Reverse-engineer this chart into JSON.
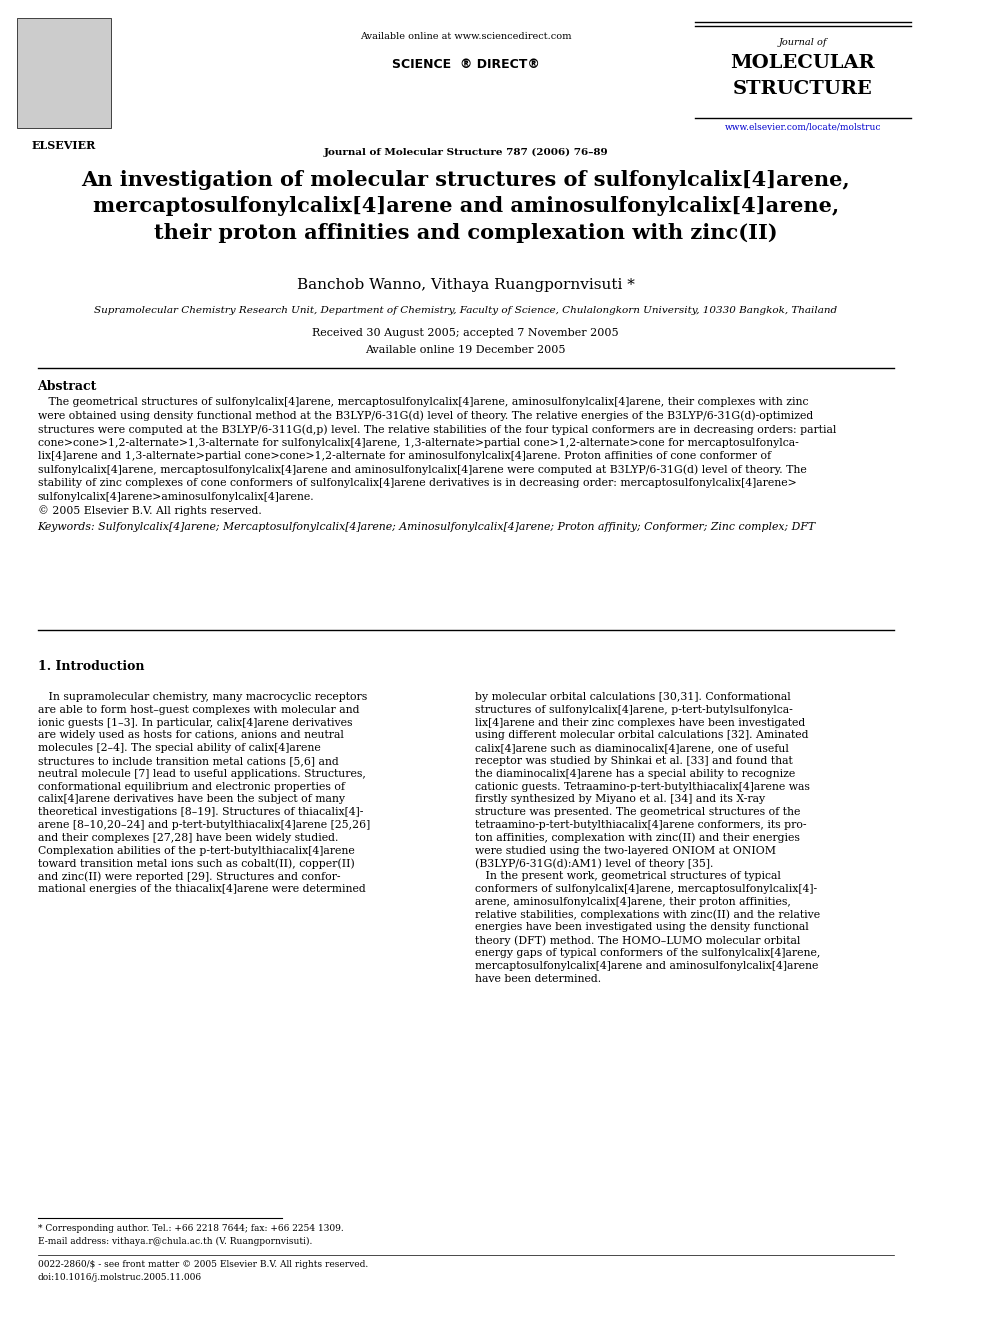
{
  "page_bg": "#ffffff",
  "header": {
    "available_online": "Available online at www.sciencedirect.com",
    "journal_line": "Journal of Molecular Structure 787 (2006) 76–89",
    "journal_name_line1": "Journal of",
    "journal_name_line2": "MOLECULAR",
    "journal_name_line3": "STRUCTURE",
    "journal_url": "www.elsevier.com/locate/molstruc"
  },
  "title": "An investigation of molecular structures of sulfonylcalix[4]arene,\nmercaptosulfonylcalix[4]arene and aminosulfonylcalix[4]arene,\ntheir proton affinities and complexation with zinc(II)",
  "authors": "Banchob Wanno, Vithaya Ruangpornvisuti *",
  "affiliation": "Supramolecular Chemistry Research Unit, Department of Chemistry, Faculty of Science, Chulalongkorn University, 10330 Bangkok, Thailand",
  "received": "Received 30 August 2005; accepted 7 November 2005",
  "available": "Available online 19 December 2005",
  "abstract_title": "Abstract",
  "abstract_text": "The geometrical structures of sulfonylcalix[4]arene, mercaptosulfonylcalix[4]arene, aminosulfonylcalix[4]arene, their complexes with zinc were obtained using density functional method at the B3LYP/6-31G(d) level of theory. The relative energies of the B3LYP/6-31G(d)-optimized structures were computed at the B3LYP/6-311G(d,p) level. The relative stabilities of the four typical conformers are in decreasing orders: partial cone>cone>1,2-alternate>1,3-alternate for sulfonylcalix[4]arene, 1,3-alternate>partial cone>1,2-alternate>cone for mercaptosulfonylcalix[4]arene and 1,3-alternate>partial cone>cone>1,2-alternate for aminosulfonylcalix[4]arene. Proton affinities of cone conformer of sulfonylcalix[4]arene, mercaptosulfonylcalix[4]arene and aminosulfonylcalix[4]arene were computed at B3LYP/6-31G(d) level of theory. The stability of zinc complexes of cone conformers of sulfonylcalix[4]arene derivatives is in decreasing order: mercaptosulfonylcalix[4]arene>sulfonylcalix[4]arene>aminosulfonylcalix[4]arene.\n© 2005 Elsevier B.V. All rights reserved.",
  "keywords": "Keywords: Sulfonylcalix[4]arene; Mercaptosulfonylcalix[4]arene; Aminosulfonylcalix[4]arene; Proton affinity; Conformer; Zinc complex; DFT",
  "intro_title": "1. Introduction",
  "intro_left": "In supramolecular chemistry, many macrocyclic receptors are able to form host–guest complexes with molecular and ionic guests [1–3]. In particular, calix[4]arene derivatives are widely used as hosts for cations, anions and neutral molecules [2–4]. The special ability of calix[4]arene structures to include transition metal cations [5,6] and neutral molecule [7] lead to useful applications. Structures, conformational equilibrium and electronic properties of calix[4]arene derivatives have been the subject of many theoretical investigations [8–19]. Structures of thiacalix[4]arene [8–10,20–24] and p-tert-butylthiacalix[4]arene [25,26] and their complexes [27,28] have been widely studied. Complexation abilities of the p-tert-butylthiacalix[4]arene toward transition metal ions such as cobalt(II), copper(II) and zinc(II) were reported [29]. Structures and conformational energies of the thiacalix[4]arene were determined",
  "intro_right": "by molecular orbital calculations [30,31]. Conformational structures of sulfonylcalix[4]arene, p-tert-butylsulfonylcalix[4]arene and their zinc complexes have been investigated using different molecular orbital calculations [32]. Aminated calix[4]arene such as diaminocalix[4]arene, one of useful receptor was studied by Shinkai et al. [33] and found that the diaminocalix[4]arene has a special ability to recognize cationic guests. Tetraamino-p-tert-butylthiacalix[4]arene was firstly synthesized by Miyano et al. [34] and its X-ray structure was presented. The geometrical structures of the tetraamino-p-tert-butylthiacalix[4]arene conformers, its proton affinities, complexation with zinc(II) and their energies were studied using the two-layered ONIOM at ONIOM (B3LYP/6-31G(d):AM1) level of theory [35].\n    In the present work, geometrical structures of typical conformers of sulfonylcalix[4]arene, mercaptosulfonylcalix[4]-arene, aminosulfonylcalix[4]arene, their proton affinities, relative stabilities, complexations with zinc(II) and the relative energies have been investigated using the density functional theory (DFT) method. The HOMO–LUMO molecular orbital energy gaps of typical conformers of the sulfonylcalix[4]arene, mercaptosulfonylcalix[4]arene and aminosulfonylcalix[4]arene have been determined.",
  "footnote_star": "* Corresponding author. Tel.: +66 2218 7644; fax: +66 2254 1309.",
  "footnote_email": "E-mail address: vithaya.r@chula.ac.th (V. Ruangpornvisuti).",
  "footnote_issn": "0022-2860/$ - see front matter © 2005 Elsevier B.V. All rights reserved.",
  "footnote_doi": "doi:10.1016/j.molstruc.2005.11.006"
}
